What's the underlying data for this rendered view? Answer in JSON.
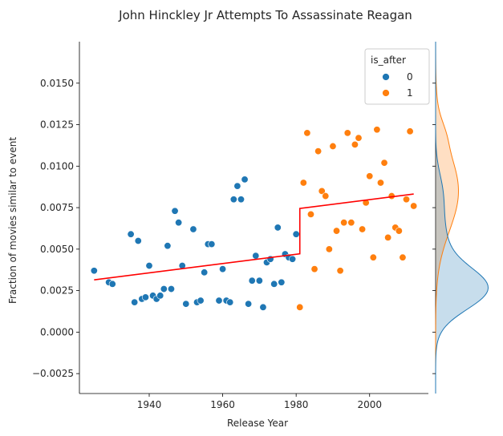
{
  "chart_data": {
    "type": "scatter",
    "title": "John Hinckley Jr Attempts To Assassinate Reagan",
    "xlabel": "Release Year",
    "ylabel": "Fraction of movies similar to event",
    "xlim": [
      1921,
      2016
    ],
    "ylim": [
      -0.0037,
      0.0175
    ],
    "xticks": [
      1940,
      1960,
      1980,
      2000
    ],
    "yticks": [
      -0.0025,
      0.0,
      0.0025,
      0.005,
      0.0075,
      0.01,
      0.0125,
      0.015
    ],
    "ytick_labels": [
      "−0.0025",
      "0.0000",
      "0.0025",
      "0.0050",
      "0.0075",
      "0.0100",
      "0.0125",
      "0.0150"
    ],
    "legend": {
      "title": "is_after",
      "placement": "top-right",
      "entries": [
        {
          "label": "0",
          "color": "#1f77b4"
        },
        {
          "label": "1",
          "color": "#ff7f0e"
        }
      ]
    },
    "colors": {
      "before": "#1f77b4",
      "after": "#ff7f0e",
      "fit": "#ff0000"
    },
    "series": [
      {
        "name": "0",
        "points": [
          [
            1925,
            0.0037
          ],
          [
            1929,
            0.003
          ],
          [
            1930,
            0.0029
          ],
          [
            1935,
            0.0059
          ],
          [
            1936,
            0.0018
          ],
          [
            1937,
            0.0055
          ],
          [
            1938,
            0.002
          ],
          [
            1939,
            0.0021
          ],
          [
            1940,
            0.004
          ],
          [
            1941,
            0.0022
          ],
          [
            1942,
            0.002
          ],
          [
            1943,
            0.0022
          ],
          [
            1944,
            0.0026
          ],
          [
            1945,
            0.0052
          ],
          [
            1946,
            0.0026
          ],
          [
            1947,
            0.0073
          ],
          [
            1948,
            0.0066
          ],
          [
            1949,
            0.004
          ],
          [
            1950,
            0.0017
          ],
          [
            1952,
            0.0062
          ],
          [
            1953,
            0.0018
          ],
          [
            1954,
            0.0019
          ],
          [
            1955,
            0.0036
          ],
          [
            1956,
            0.0053
          ],
          [
            1957,
            0.0053
          ],
          [
            1959,
            0.0019
          ],
          [
            1960,
            0.0038
          ],
          [
            1961,
            0.0019
          ],
          [
            1962,
            0.0018
          ],
          [
            1963,
            0.008
          ],
          [
            1964,
            0.0088
          ],
          [
            1965,
            0.008
          ],
          [
            1966,
            0.0092
          ],
          [
            1967,
            0.0017
          ],
          [
            1968,
            0.0031
          ],
          [
            1969,
            0.0046
          ],
          [
            1970,
            0.0031
          ],
          [
            1971,
            0.0015
          ],
          [
            1972,
            0.0042
          ],
          [
            1973,
            0.0044
          ],
          [
            1974,
            0.0029
          ],
          [
            1975,
            0.0063
          ],
          [
            1976,
            0.003
          ],
          [
            1977,
            0.0047
          ],
          [
            1978,
            0.0045
          ],
          [
            1979,
            0.0044
          ],
          [
            1980,
            0.0059
          ]
        ]
      },
      {
        "name": "1",
        "points": [
          [
            1981,
            0.0015
          ],
          [
            1982,
            0.009
          ],
          [
            1983,
            0.012
          ],
          [
            1984,
            0.0071
          ],
          [
            1985,
            0.0038
          ],
          [
            1986,
            0.0109
          ],
          [
            1987,
            0.0085
          ],
          [
            1988,
            0.0082
          ],
          [
            1989,
            0.005
          ],
          [
            1990,
            0.0112
          ],
          [
            1991,
            0.0061
          ],
          [
            1992,
            0.0037
          ],
          [
            1993,
            0.0066
          ],
          [
            1994,
            0.012
          ],
          [
            1995,
            0.0066
          ],
          [
            1996,
            0.0113
          ],
          [
            1997,
            0.0117
          ],
          [
            1998,
            0.0062
          ],
          [
            1999,
            0.0078
          ],
          [
            2000,
            0.0094
          ],
          [
            2001,
            0.0045
          ],
          [
            2002,
            0.0122
          ],
          [
            2003,
            0.009
          ],
          [
            2004,
            0.0102
          ],
          [
            2005,
            0.0057
          ],
          [
            2006,
            0.0082
          ],
          [
            2007,
            0.0063
          ],
          [
            2008,
            0.0061
          ],
          [
            2009,
            0.0045
          ],
          [
            2010,
            0.008
          ],
          [
            2011,
            0.0121
          ],
          [
            2012,
            0.0076
          ]
        ]
      }
    ],
    "fit_line": [
      [
        1925,
        0.00315
      ],
      [
        1981,
        0.00472
      ],
      [
        1981,
        0.00745
      ],
      [
        2012,
        0.00832
      ]
    ],
    "marginal": {
      "type": "kde",
      "axis": "y",
      "before_peak": 0.0026,
      "after_peak": 0.0085
    }
  }
}
